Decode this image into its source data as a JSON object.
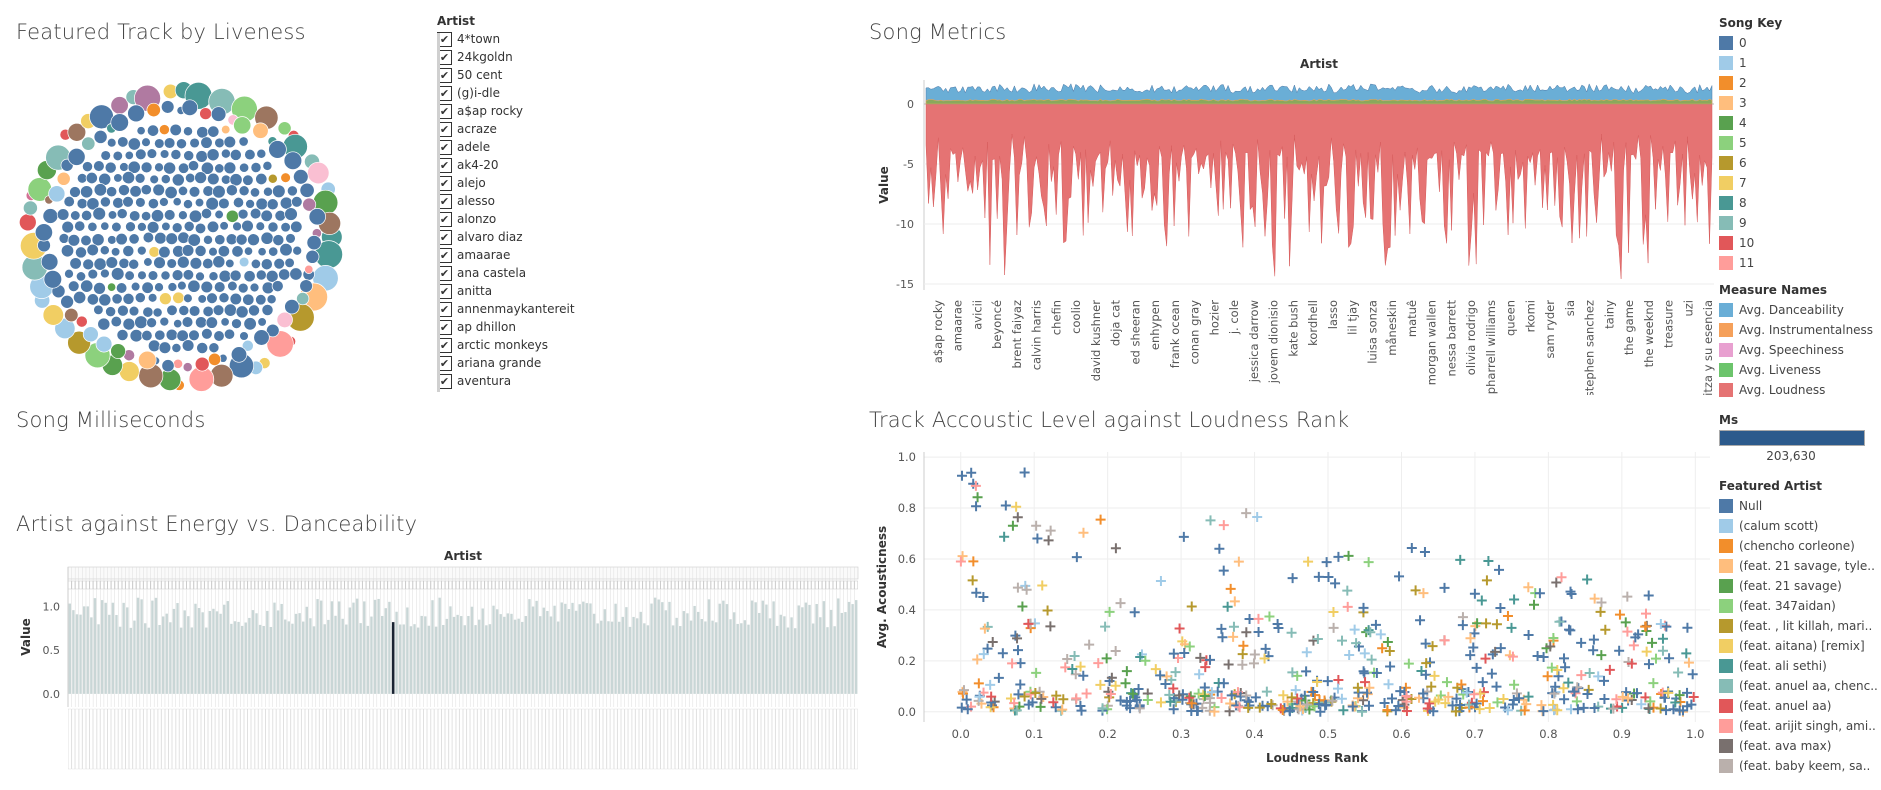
{
  "titles": {
    "liveness": "Featured Track by Liveness",
    "song_metrics": "Song Metrics",
    "song_ms": "Song Milliseconds",
    "energy": "Artist against Energy vs. Danceability",
    "acoustic": "Track Accoustic Level against Loudness Rank"
  },
  "artist_filter": {
    "header": "Artist",
    "items": [
      "4*town",
      "24kgoldn",
      "50 cent",
      "(g)i-dle",
      "a$ap rocky",
      "acraze",
      "adele",
      "ak4-20",
      "alejo",
      "alesso",
      "alonzo",
      "alvaro diaz",
      "amaarae",
      "ana castela",
      "anitta",
      "annenmaykantereit",
      "ap dhillon",
      "arctic monkeys",
      "ariana grande",
      "aventura"
    ]
  },
  "song_key_legend": {
    "header": "Song Key",
    "items": [
      {
        "label": "0",
        "color": "#4e79a7"
      },
      {
        "label": "1",
        "color": "#a0cbe8"
      },
      {
        "label": "2",
        "color": "#f28e2b"
      },
      {
        "label": "3",
        "color": "#ffbe7d"
      },
      {
        "label": "4",
        "color": "#59a14f"
      },
      {
        "label": "5",
        "color": "#8cd17d"
      },
      {
        "label": "6",
        "color": "#b6992d"
      },
      {
        "label": "7",
        "color": "#f1ce63"
      },
      {
        "label": "8",
        "color": "#499894"
      },
      {
        "label": "9",
        "color": "#86bcb6"
      },
      {
        "label": "10",
        "color": "#e15759"
      },
      {
        "label": "11",
        "color": "#ff9d9a"
      }
    ]
  },
  "measure_legend": {
    "header": "Measure Names",
    "items": [
      {
        "label": "Avg. Danceability",
        "color": "#6aaed6"
      },
      {
        "label": "Avg. Instrumentalness",
        "color": "#f5a05a"
      },
      {
        "label": "Avg. Speechiness",
        "color": "#e8a0d0"
      },
      {
        "label": "Avg. Liveness",
        "color": "#6cc46c"
      },
      {
        "label": "Avg. Loudness",
        "color": "#e57373"
      }
    ]
  },
  "ms_legend": {
    "header": "Ms",
    "value": "203,630",
    "color": "#2c5a8c"
  },
  "featured_legend": {
    "header": "Featured Artist",
    "items": [
      {
        "label": "Null",
        "color": "#4e79a7"
      },
      {
        "label": "(calum scott)",
        "color": "#a0cbe8"
      },
      {
        "label": "(chencho corleone)",
        "color": "#f28e2b"
      },
      {
        "label": "(feat. 21 savage, tyle..",
        "color": "#ffbe7d"
      },
      {
        "label": "(feat. 21 savage)",
        "color": "#59a14f"
      },
      {
        "label": "(feat. 347aidan)",
        "color": "#8cd17d"
      },
      {
        "label": "(feat. , lit killah, mari..",
        "color": "#b6992d"
      },
      {
        "label": "(feat. aitana) [remix]",
        "color": "#f1ce63"
      },
      {
        "label": "(feat. ali sethi)",
        "color": "#499894"
      },
      {
        "label": "(feat. anuel aa, chenc..",
        "color": "#86bcb6"
      },
      {
        "label": "(feat.  anuel aa)",
        "color": "#e15759"
      },
      {
        "label": "(feat. arijit singh, ami..",
        "color": "#ff9d9a"
      },
      {
        "label": "(feat. ava max)",
        "color": "#79706e"
      },
      {
        "label": "(feat. baby keem, sa..",
        "color": "#bab0ac"
      }
    ]
  },
  "chart_data": [
    {
      "type": "area",
      "title": "Song Metrics",
      "column_header": "Artist",
      "ylabel": "Value",
      "ylim": [
        -15.5,
        2
      ],
      "yticks": [
        0,
        -5,
        -10,
        -15
      ],
      "categories": [
        "a$ap rocky",
        "amaarae",
        "avicii",
        "beyoncé",
        "brent faiyaz",
        "calvin harris",
        "chefin",
        "coolio",
        "david kushner",
        "doja cat",
        "ed sheeran",
        "enhypen",
        "frank ocean",
        "conan gray",
        "hozier",
        "j. cole",
        "jessica darrow",
        "jovem dionisio",
        "kate bush",
        "kordhell",
        "lasso",
        "lil tjay",
        "luisa sonza",
        "måneskin",
        "matuê",
        "morgan wallen",
        "nessa barrett",
        "olivia rodrigo",
        "pharrell williams",
        "queen",
        "rkomi",
        "sam ryder",
        "sia",
        "stephen sanchez",
        "tainy",
        "the game",
        "the weeknd",
        "treasure",
        "uzi",
        "yahritza y su esencia"
      ],
      "series": [
        {
          "name": "Avg. Danceability",
          "approx_range": [
            0.5,
            0.9
          ]
        },
        {
          "name": "Avg. Instrumentalness",
          "approx_range": [
            0,
            0.2
          ]
        },
        {
          "name": "Avg. Speechiness",
          "approx_range": [
            0,
            0.4
          ]
        },
        {
          "name": "Avg. Liveness",
          "approx_range": [
            0.1,
            0.4
          ]
        },
        {
          "name": "Avg. Loudness",
          "approx_range": [
            -15,
            -3
          ]
        }
      ]
    },
    {
      "type": "scatter",
      "title": "Track Accoustic Level against Loudness Rank",
      "xlabel": "Loudness Rank",
      "ylabel": "Avg. Acousticness",
      "xlim": [
        -0.05,
        1.02
      ],
      "ylim": [
        -0.04,
        1.02
      ],
      "xticks": [
        "0.0",
        "0.1",
        "0.2",
        "0.3",
        "0.4",
        "0.5",
        "0.6",
        "0.7",
        "0.8",
        "0.9",
        "1.0"
      ],
      "yticks": [
        "0.0",
        "0.2",
        "0.4",
        "0.6",
        "0.8",
        "1.0"
      ],
      "marker": "cross",
      "approx_points": 700
    },
    {
      "type": "bar",
      "title": "Artist against Energy vs. Danceability",
      "column_header": "Artist",
      "ylabel": "Value",
      "ylim": [
        -0.15,
        1.45
      ],
      "yticks": [
        "0.0",
        "0.5",
        "1.0"
      ],
      "approx_bars": 220,
      "highlighted_value": 0.82
    }
  ]
}
